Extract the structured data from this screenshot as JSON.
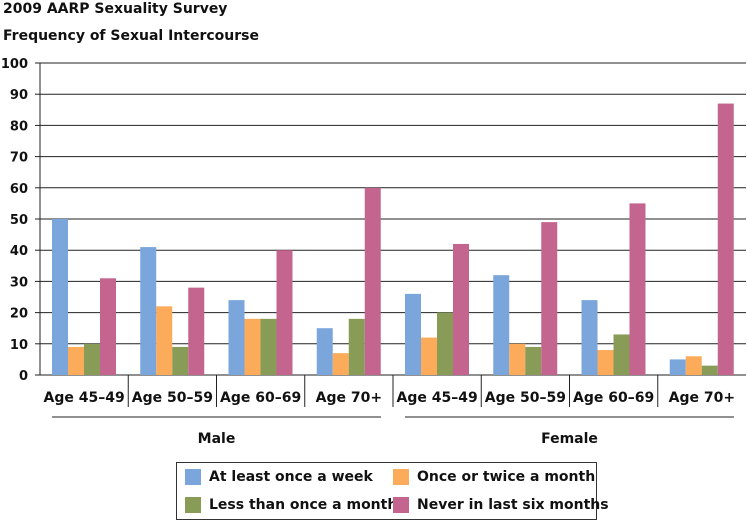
{
  "chart_data": {
    "type": "bar",
    "title": "2009 AARP Sexuality Survey",
    "subtitle": "Frequency of Sexual Intercourse",
    "ylim": [
      0,
      100
    ],
    "yticks": [
      0,
      10,
      20,
      30,
      40,
      50,
      60,
      70,
      80,
      90,
      100
    ],
    "grid": true,
    "legend_position": "bottom",
    "groups": [
      {
        "name": "Male",
        "categories": [
          "Age 45–49",
          "Age 50–59",
          "Age 60–69",
          "Age 70+"
        ]
      },
      {
        "name": "Female",
        "categories": [
          "Age 45–49",
          "Age 50–59",
          "Age 60–69",
          "Age 70+"
        ]
      }
    ],
    "series": [
      {
        "name": "At least once a week",
        "color": "#7aa6dc",
        "values": [
          50,
          41,
          24,
          15,
          26,
          32,
          24,
          5
        ]
      },
      {
        "name": "Once or twice a month",
        "color": "#fbab59",
        "values": [
          9,
          22,
          18,
          7,
          12,
          10,
          8,
          6
        ]
      },
      {
        "name": "Less than once a month",
        "color": "#889c58",
        "values": [
          10,
          9,
          18,
          18,
          20,
          9,
          13,
          3
        ]
      },
      {
        "name": "Never in last six months",
        "color": "#c4658f",
        "values": [
          31,
          28,
          40,
          60,
          42,
          49,
          55,
          87
        ]
      }
    ]
  }
}
